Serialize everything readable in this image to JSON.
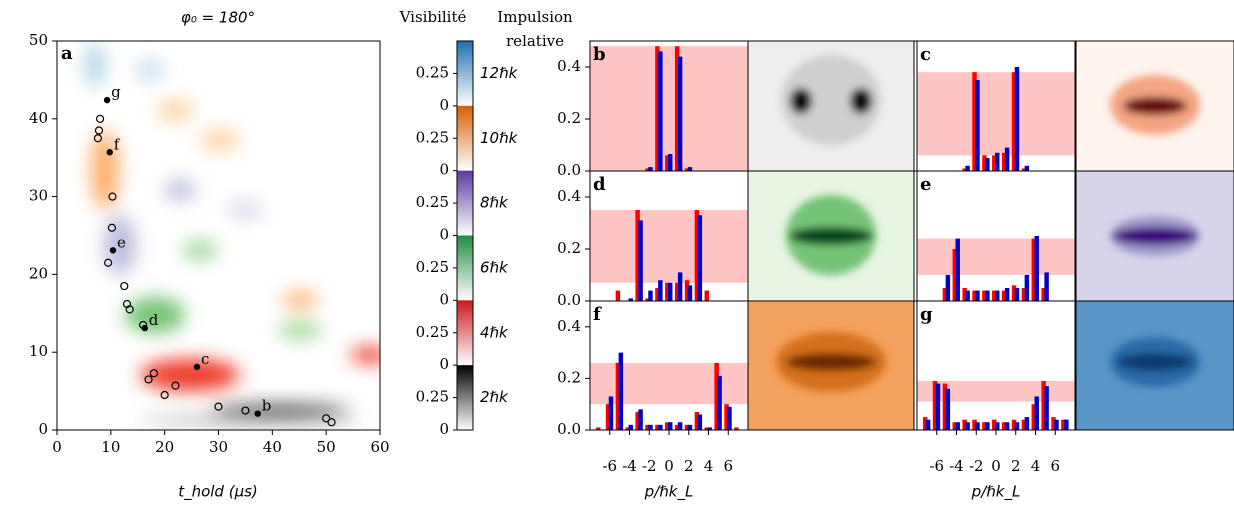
{
  "chart_data": [
    {
      "type": "scatter",
      "panel": "a",
      "title": "φ₀ = 180°",
      "xlabel": "t_hold (μs)",
      "xlim": [
        0,
        60
      ],
      "ylim": [
        0,
        50
      ],
      "xticks": [
        0,
        10,
        20,
        30,
        40,
        50,
        60
      ],
      "yticks": [
        0,
        10,
        20,
        30,
        40,
        50
      ],
      "series": [
        {
          "color": "#000000",
          "marker": "filled",
          "x": [
            9.3,
            9.8,
            10.4,
            16.3,
            26,
            37.3
          ],
          "values": [
            42.4,
            35.7,
            23.1,
            13.1,
            8.1,
            2.1
          ],
          "point_labels": [
            "g",
            "f",
            "e",
            "d",
            "c",
            "b"
          ]
        },
        {
          "color": "#000000",
          "marker": "open",
          "x": [
            8,
            7.8,
            7.6,
            10.3,
            10.2,
            9.5,
            12.5,
            13,
            13.5,
            16,
            17,
            18,
            20,
            22,
            30,
            35,
            50,
            51
          ],
          "values": [
            40,
            38.5,
            37.5,
            30,
            26,
            21.5,
            18.5,
            16.2,
            15.5,
            13.5,
            6.5,
            7.3,
            4.5,
            5.7,
            3,
            2.5,
            1.5,
            1
          ]
        }
      ],
      "colorbar": {
        "title": "Visibilité",
        "label_title": [
          "Impulsion",
          "relative"
        ],
        "lim": [
          0,
          0.5
        ],
        "ticks": [
          0,
          0.25
        ],
        "segments": [
          {
            "label": "12ℏk",
            "color": "#1f6fb0"
          },
          {
            "label": "10ℏk",
            "color": "#d95f02"
          },
          {
            "label": "8ℏk",
            "color": "#5b3a9e"
          },
          {
            "label": "6ℏk",
            "color": "#238b45"
          },
          {
            "label": "4ℏk",
            "color": "#cb181d"
          },
          {
            "label": "2ℏk",
            "color": "#000000"
          }
        ]
      }
    },
    {
      "type": "bar",
      "panel": "b",
      "x": [
        -7,
        -6,
        -5,
        -4,
        -3,
        -2,
        -1,
        0,
        1,
        2,
        3,
        4,
        5,
        6,
        7
      ],
      "xlim": [
        -8,
        8
      ],
      "ylim": [
        0,
        0.5
      ],
      "yticks": [
        {
          "value": 0,
          "label": "0.0"
        },
        0.2,
        0.4
      ],
      "band": [
        0,
        0.48
      ],
      "band_color": "#ffc4c4",
      "series": [
        {
          "color": "#ff0000",
          "values": [
            0,
            0,
            0,
            0,
            0,
            0.01,
            0.48,
            0.06,
            0.48,
            0.01,
            0,
            0,
            0,
            0,
            0
          ]
        },
        {
          "color": "#0000cc",
          "values": [
            0,
            0,
            0,
            0,
            0,
            0.015,
            0.46,
            0.065,
            0.44,
            0.015,
            0,
            0,
            0,
            0,
            0
          ]
        }
      ]
    },
    {
      "type": "bar",
      "panel": "c",
      "x": [
        -7,
        -6,
        -5,
        -4,
        -3,
        -2,
        -1,
        0,
        1,
        2,
        3,
        4,
        5,
        6,
        7
      ],
      "xlim": [
        -8,
        8
      ],
      "ylim": [
        0,
        0.5
      ],
      "band": [
        0.06,
        0.38
      ],
      "band_color": "#ffc4c4",
      "series": [
        {
          "color": "#ff0000",
          "values": [
            0,
            0,
            0,
            0,
            0.01,
            0.38,
            0.06,
            0.06,
            0.07,
            0.38,
            0.01,
            0,
            0,
            0,
            0
          ]
        },
        {
          "color": "#0000cc",
          "values": [
            0,
            0,
            0,
            0,
            0.02,
            0.35,
            0.05,
            0.07,
            0.09,
            0.4,
            0.02,
            0,
            0,
            0,
            0
          ]
        }
      ]
    },
    {
      "type": "bar",
      "panel": "d",
      "x": [
        -7,
        -6,
        -5,
        -4,
        -3,
        -2,
        -1,
        0,
        1,
        2,
        3,
        4,
        5,
        6,
        7
      ],
      "xlim": [
        -8,
        8
      ],
      "ylim": [
        0,
        0.5
      ],
      "yticks": [
        {
          "value": 0,
          "label": "0.0"
        },
        0.2,
        0.4
      ],
      "band": [
        0.07,
        0.35
      ],
      "band_color": "#ffc4c4",
      "series": [
        {
          "color": "#ff0000",
          "values": [
            0,
            0,
            0.04,
            0,
            0.35,
            0.01,
            0.05,
            0.07,
            0.07,
            0.08,
            0.35,
            0.04,
            0,
            0,
            0
          ]
        },
        {
          "color": "#0000cc",
          "values": [
            0,
            0,
            0,
            0.01,
            0.31,
            0.04,
            0.08,
            0.07,
            0.11,
            0.06,
            0.33,
            0,
            0,
            0,
            0
          ]
        }
      ]
    },
    {
      "type": "bar",
      "panel": "e",
      "x": [
        -7,
        -6,
        -5,
        -4,
        -3,
        -2,
        -1,
        0,
        1,
        2,
        3,
        4,
        5,
        6,
        7
      ],
      "xlim": [
        -8,
        8
      ],
      "ylim": [
        0,
        0.5
      ],
      "band": [
        0.1,
        0.24
      ],
      "band_color": "#ffc4c4",
      "series": [
        {
          "color": "#ff0000",
          "values": [
            0,
            0,
            0.05,
            0.2,
            0.05,
            0.04,
            0.04,
            0.04,
            0.04,
            0.06,
            0.05,
            0.24,
            0.05,
            0,
            0
          ]
        },
        {
          "color": "#0000cc",
          "values": [
            0,
            0,
            0.1,
            0.24,
            0.04,
            0.04,
            0.04,
            0.04,
            0.05,
            0.05,
            0.1,
            0.25,
            0.11,
            0,
            0
          ]
        }
      ]
    },
    {
      "type": "bar",
      "panel": "f",
      "x": [
        -7,
        -6,
        -5,
        -4,
        -3,
        -2,
        -1,
        0,
        1,
        2,
        3,
        4,
        5,
        6,
        7
      ],
      "xlim": [
        -8,
        8
      ],
      "ylim": [
        0,
        0.5
      ],
      "yticks": [
        {
          "value": 0,
          "label": "0.0"
        },
        0.2,
        0.4
      ],
      "xticks": [
        -6,
        -4,
        -2,
        0,
        2,
        4,
        6
      ],
      "xlabel": "p/ℏk_L",
      "band": [
        0.1,
        0.26
      ],
      "band_color": "#ffc4c4",
      "series": [
        {
          "color": "#ff0000",
          "values": [
            0.01,
            0.1,
            0.26,
            0.01,
            0.07,
            0.02,
            0.02,
            0.03,
            0.02,
            0.02,
            0.07,
            0.01,
            0.26,
            0.1,
            0.01
          ]
        },
        {
          "color": "#0000cc",
          "values": [
            0,
            0.13,
            0.3,
            0.02,
            0.08,
            0.02,
            0.02,
            0.03,
            0.03,
            0.02,
            0.06,
            0.01,
            0.21,
            0.09,
            0
          ]
        }
      ]
    },
    {
      "type": "bar",
      "panel": "g",
      "x": [
        -7,
        -6,
        -5,
        -4,
        -3,
        -2,
        -1,
        0,
        1,
        2,
        3,
        4,
        5,
        6,
        7
      ],
      "xlim": [
        -8,
        8
      ],
      "ylim": [
        0,
        0.5
      ],
      "xticks": [
        -6,
        -4,
        -2,
        0,
        2,
        4,
        6
      ],
      "xlabel": "p/ℏk_L",
      "band": [
        0.11,
        0.19
      ],
      "band_color": "#ffc4c4",
      "series": [
        {
          "color": "#ff0000",
          "values": [
            0.05,
            0.19,
            0.18,
            0.03,
            0.04,
            0.04,
            0.03,
            0.04,
            0.03,
            0.04,
            0.04,
            0.1,
            0.19,
            0.05,
            0.04
          ]
        },
        {
          "color": "#0000cc",
          "values": [
            0.04,
            0.18,
            0.16,
            0.03,
            0.03,
            0.03,
            0.03,
            0.03,
            0.03,
            0.03,
            0.05,
            0.13,
            0.17,
            0.04,
            0.04
          ]
        }
      ]
    }
  ]
}
